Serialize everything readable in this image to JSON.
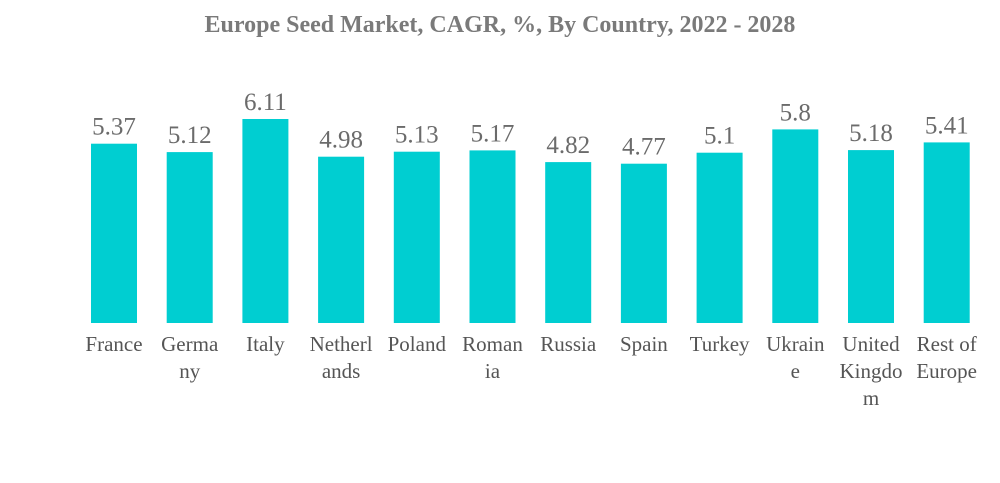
{
  "chart_data": {
    "type": "bar",
    "title": "Europe Seed Market, CAGR, %, By Country, 2022 - 2028",
    "xlabel": "",
    "ylabel": "",
    "ylim": [
      0,
      6.11
    ],
    "grid": false,
    "legend": "none",
    "colors": {
      "bar": "#00CED1"
    },
    "categories": [
      "France",
      "Germany",
      "Italy",
      "Netherlands",
      "Poland",
      "Romania",
      "Russia",
      "Spain",
      "Turkey",
      "Ukraine",
      "United Kingdom",
      "Rest of Europe"
    ],
    "category_lines": [
      [
        "France"
      ],
      [
        "Germa",
        "ny"
      ],
      [
        "Italy"
      ],
      [
        "Netherl",
        "ands"
      ],
      [
        "Poland"
      ],
      [
        "Roman",
        "ia"
      ],
      [
        "Russia"
      ],
      [
        "Spain"
      ],
      [
        "Turkey"
      ],
      [
        "Ukrain",
        "e"
      ],
      [
        "United",
        "Kingdo",
        "m"
      ],
      [
        "Rest of",
        "Europe"
      ]
    ],
    "values": [
      5.37,
      5.12,
      6.11,
      4.98,
      5.13,
      5.17,
      4.82,
      4.77,
      5.1,
      5.8,
      5.18,
      5.41
    ],
    "value_labels": [
      "5.37",
      "5.12",
      "6.11",
      "4.98",
      "5.13",
      "5.17",
      "4.82",
      "4.77",
      "5.1",
      "5.8",
      "5.18",
      "5.41"
    ]
  }
}
